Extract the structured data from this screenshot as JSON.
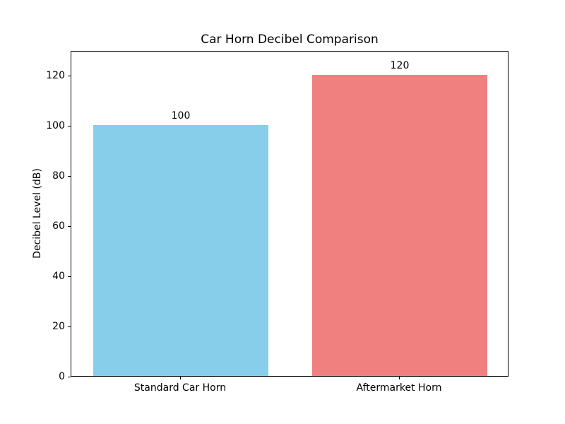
{
  "figure": {
    "background": "#FFFFFF"
  },
  "chart_data": {
    "type": "bar",
    "title": "Car Horn Decibel Comparison",
    "xlabel": "",
    "ylabel": "Decibel Level (dB)",
    "categories": [
      "Standard Car Horn",
      "Aftermarket Horn"
    ],
    "values": [
      100,
      120
    ],
    "bar_value_labels": [
      "100",
      "120"
    ],
    "bar_colors": [
      "#87CEEB",
      "#F08080"
    ],
    "yticks": [
      0,
      20,
      40,
      60,
      80,
      100,
      120
    ],
    "ylim": [
      0,
      130
    ],
    "bar_width_fraction": 0.8,
    "grid": false,
    "legend": "none",
    "text_color": "#000000",
    "spine_color": "#000000"
  }
}
